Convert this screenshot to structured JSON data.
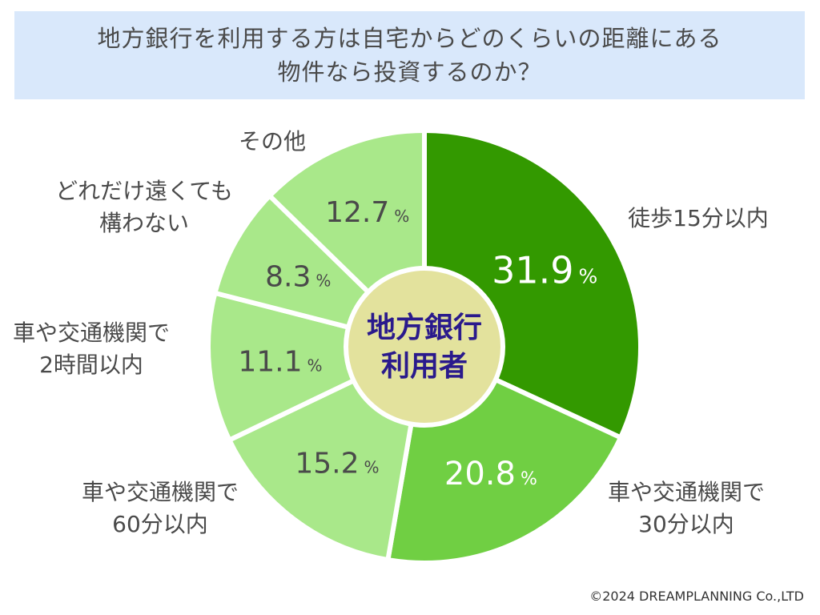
{
  "title": {
    "line1": "地方銀行を利用する方は自宅からどのくらいの距離にある",
    "line2": "物件なら投資するのか？"
  },
  "center_label": [
    "地方銀行",
    "利用者"
  ],
  "copyright": "©2024 DREAMPLANNING Co.,LTD",
  "colors": {
    "slice_dark": "#339900",
    "slice_mid": "#70cf43",
    "slice_light": "#a9e88a",
    "center_fill": "#e3e29d",
    "center_text": "#2a1a8c",
    "title_bg": "#d9e8fb"
  },
  "chart_data": {
    "type": "pie",
    "title": "地方銀行を利用する方は自宅からどのくらいの距離にある物件なら投資するのか？",
    "unit": "%",
    "slices": [
      {
        "label": [
          "徒歩15分以内"
        ],
        "value": 31.9,
        "display": "31.9",
        "color": "#339900",
        "text_color": "#ffffff"
      },
      {
        "label": [
          "車や交通機関で",
          "30分以内"
        ],
        "value": 20.8,
        "display": "20.8",
        "color": "#70cf43",
        "text_color": "#ffffff"
      },
      {
        "label": [
          "車や交通機関で",
          "60分以内"
        ],
        "value": 15.2,
        "display": "15.2",
        "color": "#a9e88a",
        "text_color": "#4a4a4a"
      },
      {
        "label": [
          "車や交通機関で",
          "2時間以内"
        ],
        "value": 11.1,
        "display": "11.1",
        "color": "#a9e88a",
        "text_color": "#4a4a4a"
      },
      {
        "label": [
          "どれだけ遠くても",
          "構わない"
        ],
        "value": 8.3,
        "display": "8.3",
        "color": "#a9e88a",
        "text_color": "#4a4a4a"
      },
      {
        "label": [
          "その他"
        ],
        "value": 12.7,
        "display": "12.7",
        "color": "#a9e88a",
        "text_color": "#4a4a4a"
      }
    ]
  }
}
